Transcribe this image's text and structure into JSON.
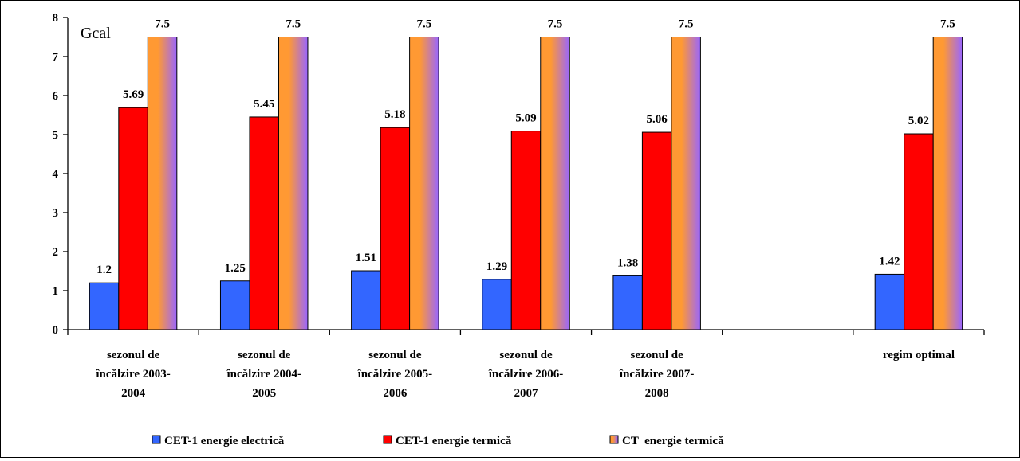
{
  "chart_data": {
    "type": "bar",
    "unit_label": "Gcal",
    "ylim": [
      0,
      8
    ],
    "yticks": [
      "0",
      "1",
      "2",
      "3",
      "4",
      "5",
      "6",
      "7",
      "8"
    ],
    "grid": false,
    "legend_position": "bottom",
    "categories": [
      [
        "sezonul de",
        "încălzire 2003-",
        "2004"
      ],
      [
        "sezonul de",
        "încălzire 2004-",
        "2005"
      ],
      [
        "sezonul de",
        "încălzire 2005-",
        "2006"
      ],
      [
        "sezonul de",
        "încălzire 2006-",
        "2007"
      ],
      [
        "sezonul de",
        "încălzire 2007-",
        "2008"
      ],
      [],
      [
        "regim optimal"
      ]
    ],
    "series": [
      {
        "name": "CET-1 energie electrică",
        "color": "#3366FF",
        "values": [
          1.2,
          1.25,
          1.51,
          1.29,
          1.38,
          null,
          1.42
        ],
        "labels": [
          "1.2",
          "1.25",
          "1.51",
          "1.29",
          "1.38",
          "",
          "1.42"
        ]
      },
      {
        "name": "CET-1 energie termică",
        "color": "#FF0000",
        "values": [
          5.69,
          5.45,
          5.18,
          5.09,
          5.06,
          null,
          5.02
        ],
        "labels": [
          "5.69",
          "5.45",
          "5.18",
          "5.09",
          "5.06",
          "",
          "5.02"
        ]
      },
      {
        "name": "CT  energie termică",
        "color": "#FF9933",
        "gradient": [
          "#FF9933",
          "#9966FF"
        ],
        "values": [
          7.5,
          7.5,
          7.5,
          7.5,
          7.5,
          null,
          7.5
        ],
        "labels": [
          "7.5",
          "7.5",
          "7.5",
          "7.5",
          "7.5",
          "",
          "7.5"
        ]
      }
    ]
  }
}
